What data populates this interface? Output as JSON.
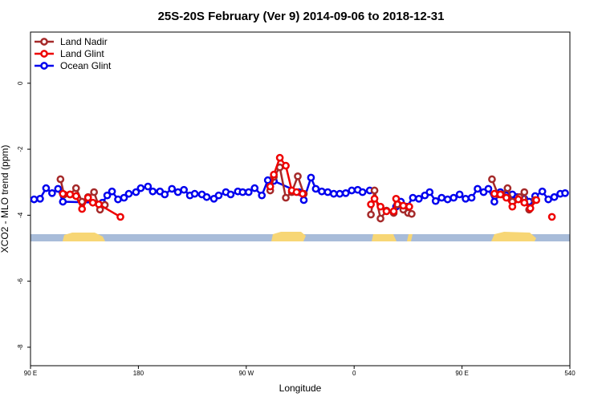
{
  "chart_data": {
    "type": "line",
    "title": "25S-20S February (Ver 9)   2014-09-06 to 2018-12-31",
    "x_label": "Longitude",
    "y_label": "XCO2 - MLO trend (ppm)",
    "xlim": [
      90,
      540
    ],
    "ylim": [
      -8.56,
      1.55
    ],
    "xticks": [
      {
        "value": 90,
        "label": "90 E"
      },
      180,
      {
        "value": 270,
        "label": "90 W"
      },
      {
        "value": 360,
        "label": "0"
      },
      {
        "value": 450,
        "label": "90 E"
      },
      540
    ],
    "yticks": [
      0,
      -2,
      -4,
      -6,
      -8
    ],
    "legend": "top-left",
    "series": [
      {
        "name": "Land Nadir",
        "color": "#a52a2a",
        "x": [
          115,
          118,
          123,
          128,
          133,
          138,
          143,
          148,
          152,
          200,
          290,
          293,
          298,
          303,
          308,
          313,
          318,
          350,
          374,
          377,
          382,
          387,
          393,
          396,
          401,
          405,
          408,
          440,
          475,
          480,
          483,
          488,
          492,
          498,
          502,
          506,
          511
        ],
        "values": [
          -2.91,
          -3.37,
          -3.37,
          -3.18,
          -3.59,
          -3.45,
          -3.3,
          -3.83,
          -3.69,
          null,
          -3.25,
          -2.84,
          -2.55,
          -3.47,
          -3.3,
          -2.82,
          -3.35,
          null,
          -3.98,
          -3.25,
          -4.1,
          -3.86,
          -3.93,
          -3.67,
          -3.83,
          -3.93,
          -3.96,
          null,
          -2.91,
          -3.37,
          -3.37,
          -3.18,
          -3.59,
          -3.45,
          -3.3,
          -3.83,
          -3.54
        ]
      },
      {
        "name": "Land Glint",
        "color": "#ee0000",
        "x": [
          117,
          123,
          128,
          133,
          138,
          142,
          147,
          165,
          200,
          290,
          293,
          298,
          303,
          308,
          312,
          317,
          350,
          374,
          377,
          382,
          387,
          393,
          395,
          401,
          406,
          440,
          477,
          482,
          487,
          492,
          497,
          502,
          507,
          512,
          518,
          525
        ],
        "values": [
          -3.35,
          -3.37,
          -3.42,
          -3.81,
          -3.47,
          -3.62,
          -3.67,
          -4.05,
          null,
          -3.13,
          -2.77,
          -2.26,
          -2.5,
          -3.25,
          -3.3,
          -3.35,
          null,
          -3.67,
          -3.5,
          -3.74,
          -3.88,
          -3.88,
          -3.5,
          -3.71,
          -3.74,
          null,
          -3.35,
          -3.37,
          -3.47,
          -3.74,
          -3.52,
          -3.62,
          -3.79,
          -3.54,
          null,
          -4.05
        ]
      },
      {
        "name": "Ocean Glint",
        "color": "#0000ee",
        "x": [
          93,
          98,
          103,
          108,
          113,
          117,
          150,
          154,
          158,
          163,
          168,
          172,
          178,
          182,
          188,
          192,
          198,
          202,
          208,
          213,
          218,
          223,
          227,
          233,
          237,
          243,
          247,
          253,
          257,
          263,
          267,
          272,
          277,
          283,
          288,
          293,
          314,
          318,
          324,
          328,
          333,
          338,
          343,
          348,
          353,
          358,
          363,
          367,
          373,
          384,
          395,
          399,
          404,
          409,
          414,
          419,
          423,
          428,
          433,
          438,
          443,
          448,
          453,
          458,
          463,
          468,
          472,
          477,
          482,
          487,
          492,
          496,
          502,
          506,
          511,
          517,
          522,
          527,
          532,
          536
        ],
        "values": [
          -3.52,
          -3.5,
          -3.18,
          -3.33,
          -3.2,
          -3.59,
          -3.62,
          -3.4,
          -3.28,
          -3.52,
          -3.47,
          -3.35,
          -3.3,
          -3.18,
          -3.13,
          -3.28,
          -3.28,
          -3.37,
          -3.2,
          -3.3,
          -3.23,
          -3.4,
          -3.35,
          -3.37,
          -3.45,
          -3.5,
          -3.4,
          -3.3,
          -3.37,
          -3.28,
          -3.3,
          -3.3,
          -3.18,
          -3.4,
          -2.94,
          -2.96,
          -3.3,
          -3.54,
          -2.86,
          -3.2,
          -3.28,
          -3.3,
          -3.35,
          -3.35,
          -3.33,
          -3.25,
          -3.23,
          -3.3,
          -3.25,
          null,
          -3.74,
          -3.59,
          -3.74,
          -3.47,
          -3.5,
          -3.4,
          -3.3,
          -3.57,
          -3.47,
          -3.52,
          -3.47,
          -3.37,
          -3.5,
          -3.47,
          -3.2,
          -3.3,
          -3.2,
          -3.59,
          -3.3,
          -3.4,
          -3.37,
          -3.45,
          -3.5,
          -3.59,
          -3.42,
          -3.28,
          -3.52,
          -3.45,
          -3.35,
          -3.33
        ]
      }
    ]
  }
}
